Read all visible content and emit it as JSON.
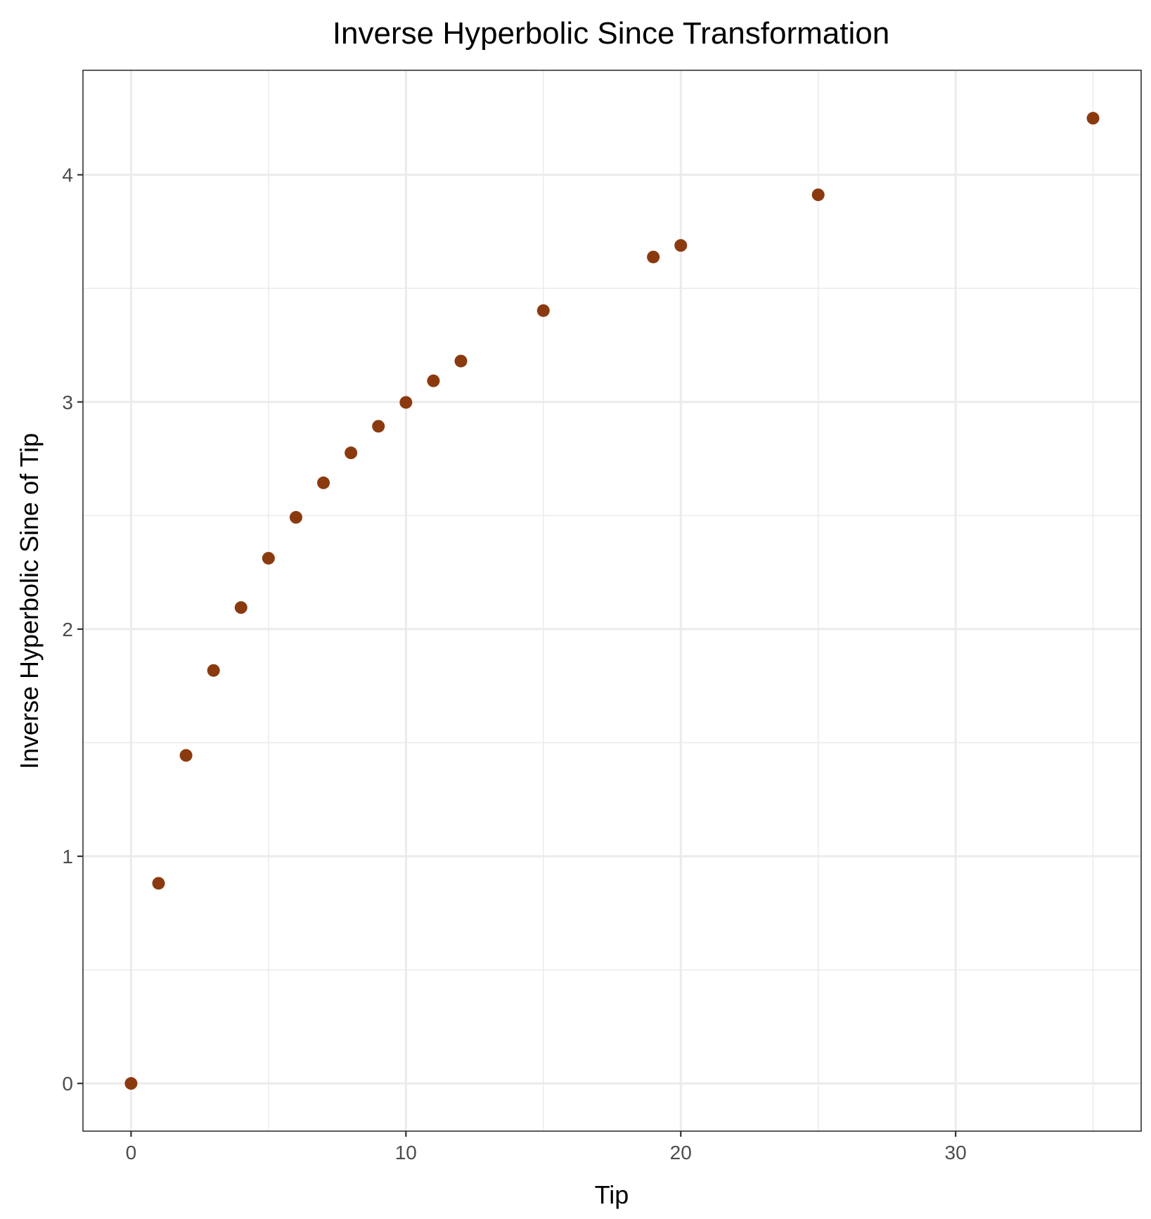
{
  "chart_data": {
    "type": "scatter",
    "title": "Inverse Hyperbolic Since Transformation",
    "xlabel": "Tip",
    "ylabel": "Inverse Hyperbolic Sine of Tip",
    "xlim": [
      -1.75,
      36.75
    ],
    "ylim": [
      -0.21,
      4.46
    ],
    "x_ticks": [
      0,
      10,
      20,
      30
    ],
    "y_ticks": [
      0,
      1,
      2,
      3,
      4
    ],
    "x_minor": [
      5,
      15,
      25,
      35
    ],
    "y_minor": [
      0.5,
      1.5,
      2.5,
      3.5
    ],
    "grid": true,
    "legend": "none",
    "point_color": "#8B3A0F",
    "points": [
      {
        "x": 0,
        "y": 0.0
      },
      {
        "x": 1,
        "y": 0.881
      },
      {
        "x": 2,
        "y": 1.444
      },
      {
        "x": 3,
        "y": 1.818
      },
      {
        "x": 4,
        "y": 2.095
      },
      {
        "x": 5,
        "y": 2.312
      },
      {
        "x": 6,
        "y": 2.492
      },
      {
        "x": 7,
        "y": 2.644
      },
      {
        "x": 8,
        "y": 2.776
      },
      {
        "x": 9,
        "y": 2.893
      },
      {
        "x": 10,
        "y": 2.998
      },
      {
        "x": 11,
        "y": 3.093
      },
      {
        "x": 12,
        "y": 3.18
      },
      {
        "x": 15,
        "y": 3.402
      },
      {
        "x": 19,
        "y": 3.638
      },
      {
        "x": 20,
        "y": 3.689
      },
      {
        "x": 25,
        "y": 3.912
      },
      {
        "x": 35,
        "y": 4.249
      }
    ]
  }
}
